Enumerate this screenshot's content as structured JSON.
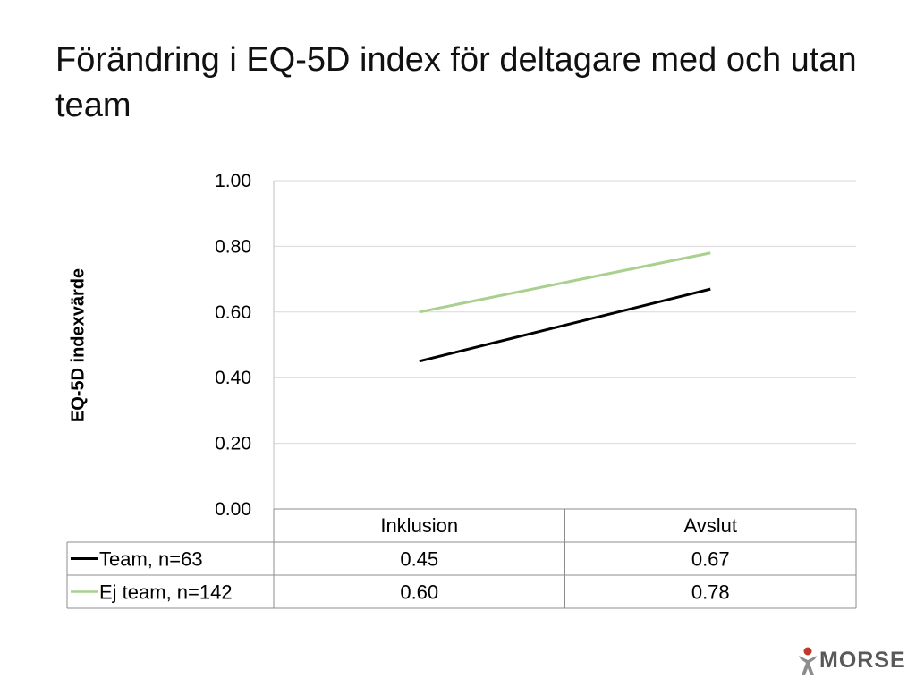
{
  "slide": {
    "title": "Förändring i EQ-5D index för deltagare med och utan team"
  },
  "chart_data": {
    "type": "line",
    "title": "",
    "xlabel": "",
    "ylabel": "EQ-5D indexvärde",
    "categories": [
      "Inklusion",
      "Avslut"
    ],
    "ylim": [
      0,
      1
    ],
    "yticks": [
      "0.00",
      "0.20",
      "0.40",
      "0.60",
      "0.80",
      "1.00"
    ],
    "grid": true,
    "data_table": true,
    "series": [
      {
        "name": "Team, n=63",
        "values": [
          0.45,
          0.67
        ],
        "labels": [
          "0.45",
          "0.67"
        ],
        "color": "#000000"
      },
      {
        "name": "Ej team, n=142",
        "values": [
          0.6,
          0.78
        ],
        "labels": [
          "0.60",
          "0.78"
        ],
        "color": "#a9d08e"
      }
    ]
  },
  "brand": {
    "name": "MORSE",
    "icon": "figure-logo-icon",
    "accent": "#c0392b",
    "text_color": "#595959"
  }
}
